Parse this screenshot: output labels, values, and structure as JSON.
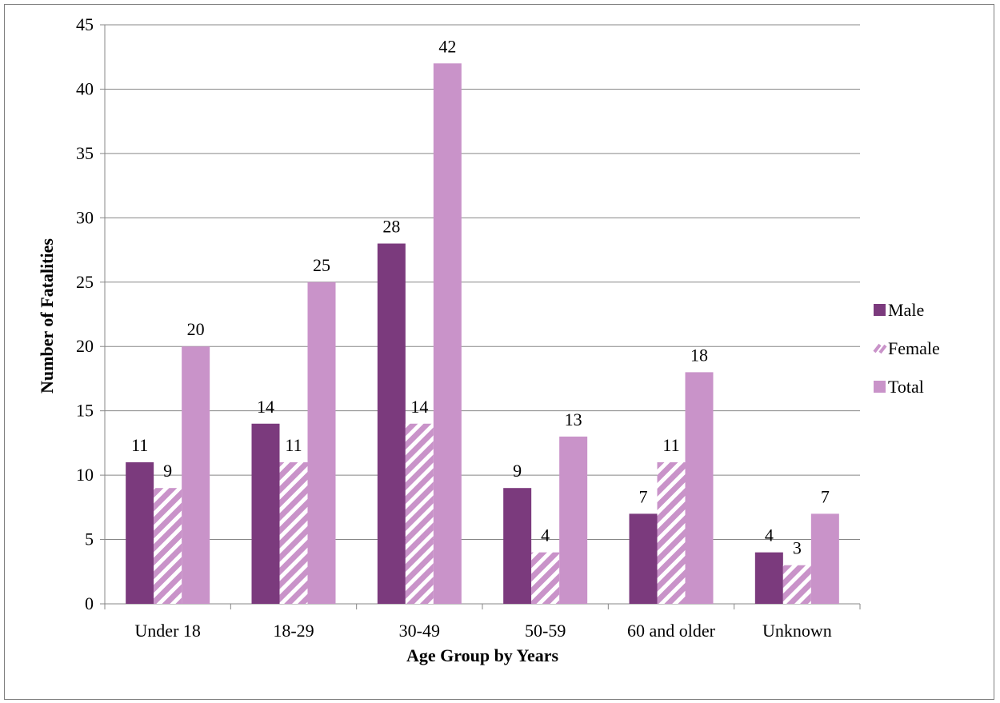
{
  "chart_data": {
    "type": "bar",
    "categories": [
      "Under 18",
      "18-29",
      "30-49",
      "50-59",
      "60 and older",
      "Unknown"
    ],
    "series": [
      {
        "name": "Male",
        "values": [
          11,
          14,
          28,
          9,
          7,
          4
        ],
        "color": "#7b3a7d",
        "pattern": "solid"
      },
      {
        "name": "Female",
        "values": [
          9,
          11,
          14,
          4,
          11,
          3
        ],
        "color": "#c993c9",
        "pattern": "diagonal-stripes"
      },
      {
        "name": "Total",
        "values": [
          20,
          25,
          42,
          13,
          18,
          7
        ],
        "color": "#c993c9",
        "pattern": "solid"
      }
    ],
    "xlabel": "Age Group by Years",
    "ylabel": "Number of Fatalities",
    "ylim": [
      0,
      45
    ],
    "yticks": [
      0,
      5,
      10,
      15,
      20,
      25,
      30,
      35,
      40,
      45
    ],
    "grid": true,
    "legend_position": "right",
    "data_labels": true
  }
}
